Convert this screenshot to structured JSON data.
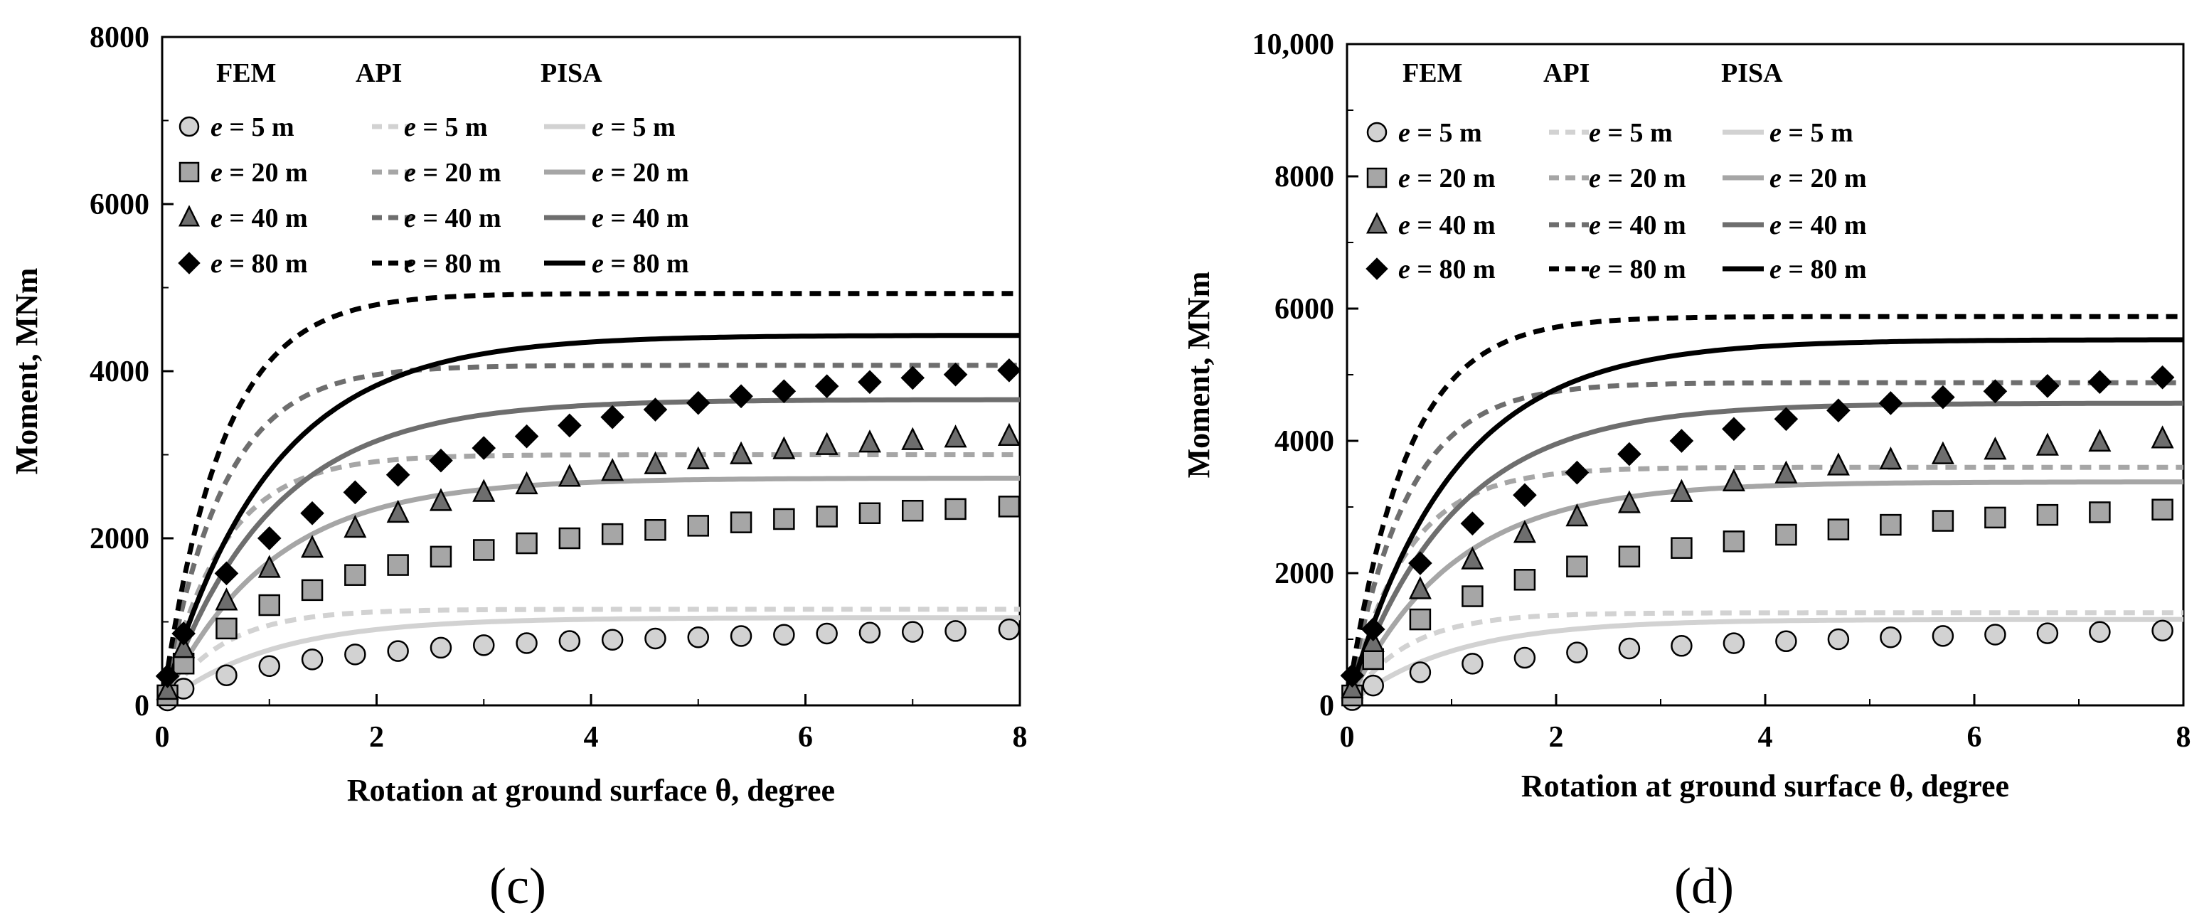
{
  "figure": {
    "panels": [
      "(c)",
      "(d)"
    ]
  },
  "legend": {
    "headers": [
      "FEM",
      "API",
      "PISA"
    ],
    "entries": [
      "e = 5 m",
      "e = 20 m",
      "e = 40 m",
      "e = 80 m"
    ],
    "e_symbol": "e",
    "entry_suffixes": [
      " = 5 m",
      " = 20 m",
      " = 40 m",
      " = 80 m"
    ]
  },
  "colors": {
    "e5": "#d2d2d2",
    "e20": "#a6a6a6",
    "e40": "#6e6e6e",
    "e80": "#000000"
  },
  "chart_data": [
    {
      "type": "line",
      "panel": "(c)",
      "xlabel": "Rotation at ground surface θ, degree",
      "ylabel": "Moment, MNm",
      "xlim": [
        0,
        8
      ],
      "ylim": [
        0,
        8000
      ],
      "xticks": [
        "0",
        "2",
        "4",
        "6",
        "8"
      ],
      "yticks": [
        "0",
        "2000",
        "4000",
        "6000",
        "8000"
      ],
      "fem_x": [
        0.05,
        0.2,
        0.6,
        1.0,
        1.4,
        1.8,
        2.2,
        2.6,
        3.0,
        3.4,
        3.8,
        4.2,
        4.6,
        5.0,
        5.4,
        5.8,
        6.2,
        6.6,
        7.0,
        7.4,
        7.9
      ],
      "series": [
        {
          "name": "FEM e = 5 m",
          "style": "fem",
          "marker": "circle",
          "color_key": "e5",
          "values": [
            60,
            200,
            360,
            470,
            550,
            610,
            650,
            690,
            720,
            745,
            770,
            785,
            800,
            815,
            830,
            845,
            860,
            870,
            880,
            890,
            910
          ]
        },
        {
          "name": "FEM e = 20 m",
          "style": "fem",
          "marker": "square",
          "color_key": "e20",
          "values": [
            120,
            500,
            920,
            1200,
            1380,
            1560,
            1680,
            1780,
            1860,
            1940,
            2000,
            2050,
            2100,
            2150,
            2190,
            2230,
            2260,
            2300,
            2330,
            2350,
            2380
          ]
        },
        {
          "name": "FEM e = 40 m",
          "style": "fem",
          "marker": "triangle",
          "color_key": "e40",
          "values": [
            180,
            680,
            1250,
            1640,
            1880,
            2120,
            2300,
            2440,
            2550,
            2640,
            2730,
            2800,
            2880,
            2940,
            3000,
            3060,
            3110,
            3140,
            3170,
            3200,
            3220
          ]
        },
        {
          "name": "FEM e = 80 m",
          "style": "fem",
          "marker": "diamond",
          "color_key": "e80",
          "values": [
            350,
            860,
            1580,
            2000,
            2300,
            2550,
            2760,
            2930,
            3080,
            3220,
            3350,
            3450,
            3540,
            3620,
            3700,
            3760,
            3820,
            3870,
            3920,
            3960,
            4010
          ]
        },
        {
          "name": "API e = 5 m",
          "style": "api",
          "color_key": "e5",
          "asymptote": 1150,
          "k": 1.8
        },
        {
          "name": "API e = 20 m",
          "style": "api",
          "color_key": "e20",
          "asymptote": 3000,
          "k": 1.8
        },
        {
          "name": "API e = 40 m",
          "style": "api",
          "color_key": "e40",
          "asymptote": 4070,
          "k": 1.8
        },
        {
          "name": "API e = 80 m",
          "style": "api",
          "color_key": "e80",
          "asymptote": 4930,
          "k": 1.8
        },
        {
          "name": "PISA e = 5 m",
          "style": "pisa",
          "color_key": "e5",
          "asymptote": 1050,
          "k": 1.0
        },
        {
          "name": "PISA e = 20 m",
          "style": "pisa",
          "color_key": "e20",
          "asymptote": 2720,
          "k": 1.0
        },
        {
          "name": "PISA e = 40 m",
          "style": "pisa",
          "color_key": "e40",
          "asymptote": 3660,
          "k": 1.0
        },
        {
          "name": "PISA e = 80 m",
          "style": "pisa",
          "color_key": "e80",
          "asymptote": 4430,
          "k": 1.0
        }
      ]
    },
    {
      "type": "line",
      "panel": "(d)",
      "xlabel": "Rotation at ground surface θ, degree",
      "ylabel": "Moment, MNm",
      "xlim": [
        0,
        8
      ],
      "ylim": [
        0,
        10000
      ],
      "xticks": [
        "0",
        "2",
        "4",
        "6",
        "8"
      ],
      "yticks": [
        "0",
        "2000",
        "4000",
        "6000",
        "8000",
        "10,000"
      ],
      "fem_x": [
        0.05,
        0.25,
        0.7,
        1.2,
        1.7,
        2.2,
        2.7,
        3.2,
        3.7,
        4.2,
        4.7,
        5.2,
        5.7,
        6.2,
        6.7,
        7.2,
        7.8
      ],
      "series": [
        {
          "name": "FEM e = 5 m",
          "style": "fem",
          "marker": "circle",
          "color_key": "e5",
          "values": [
            80,
            300,
            500,
            630,
            720,
            800,
            860,
            900,
            940,
            970,
            1000,
            1030,
            1050,
            1070,
            1090,
            1110,
            1130
          ]
        },
        {
          "name": "FEM e = 20 m",
          "style": "fem",
          "marker": "square",
          "color_key": "e20",
          "values": [
            150,
            700,
            1300,
            1650,
            1900,
            2100,
            2250,
            2380,
            2480,
            2580,
            2660,
            2730,
            2790,
            2840,
            2880,
            2920,
            2960
          ]
        },
        {
          "name": "FEM e = 40 m",
          "style": "fem",
          "marker": "triangle",
          "color_key": "e40",
          "values": [
            250,
            950,
            1750,
            2200,
            2600,
            2850,
            3050,
            3220,
            3380,
            3500,
            3620,
            3710,
            3790,
            3860,
            3920,
            3980,
            4030
          ]
        },
        {
          "name": "FEM e = 80 m",
          "style": "fem",
          "marker": "diamond",
          "color_key": "e80",
          "values": [
            450,
            1150,
            2150,
            2750,
            3180,
            3520,
            3800,
            4000,
            4180,
            4330,
            4460,
            4570,
            4660,
            4750,
            4830,
            4890,
            4960
          ]
        },
        {
          "name": "API e = 5 m",
          "style": "api",
          "color_key": "e5",
          "asymptote": 1400,
          "k": 1.8
        },
        {
          "name": "API e = 20 m",
          "style": "api",
          "color_key": "e20",
          "asymptote": 3600,
          "k": 1.8
        },
        {
          "name": "API e = 40 m",
          "style": "api",
          "color_key": "e40",
          "asymptote": 4880,
          "k": 1.8
        },
        {
          "name": "API e = 80 m",
          "style": "api",
          "color_key": "e80",
          "asymptote": 5880,
          "k": 1.8
        },
        {
          "name": "PISA e = 5 m",
          "style": "pisa",
          "color_key": "e5",
          "asymptote": 1300,
          "k": 1.0
        },
        {
          "name": "PISA e = 20 m",
          "style": "pisa",
          "color_key": "e20",
          "asymptote": 3380,
          "k": 1.0
        },
        {
          "name": "PISA e = 40 m",
          "style": "pisa",
          "color_key": "e40",
          "asymptote": 4570,
          "k": 1.0
        },
        {
          "name": "PISA e = 80 m",
          "style": "pisa",
          "color_key": "e80",
          "asymptote": 5530,
          "k": 1.0
        }
      ]
    }
  ]
}
